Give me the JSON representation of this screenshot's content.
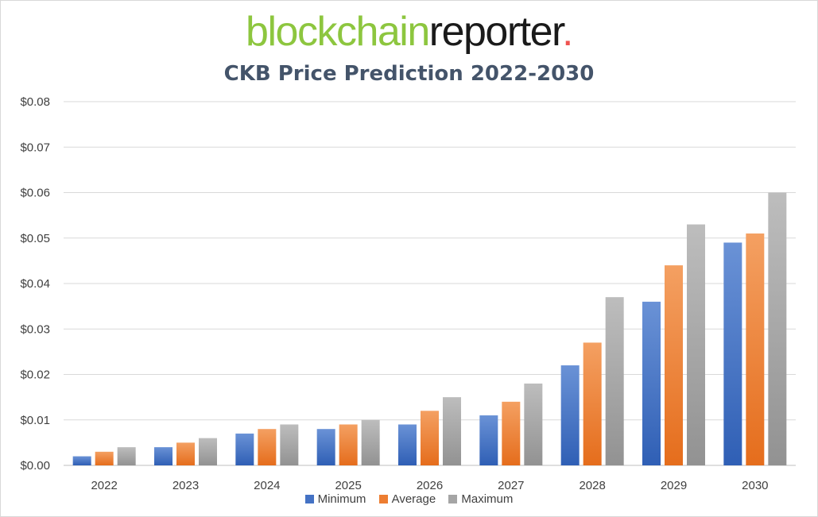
{
  "logo": {
    "part1": "blockchain",
    "part2": "reporter",
    "part3": "."
  },
  "colors": {
    "minimum": "#4472c4",
    "average": "#ed7d31",
    "maximum": "#a5a5a5",
    "logo_green": "#8dc63f",
    "logo_dot": "#ef5350"
  },
  "chart_data": {
    "type": "bar",
    "title": "CKB Price Prediction 2022-2030",
    "xlabel": "",
    "ylabel": "",
    "categories": [
      "2022",
      "2023",
      "2024",
      "2025",
      "2026",
      "2027",
      "2028",
      "2029",
      "2030"
    ],
    "series": [
      {
        "name": "Minimum",
        "values": [
          0.002,
          0.004,
          0.007,
          0.008,
          0.009,
          0.011,
          0.022,
          0.036,
          0.049
        ]
      },
      {
        "name": "Average",
        "values": [
          0.003,
          0.005,
          0.008,
          0.009,
          0.012,
          0.014,
          0.027,
          0.044,
          0.051
        ]
      },
      {
        "name": "Maximum",
        "values": [
          0.004,
          0.006,
          0.009,
          0.01,
          0.015,
          0.018,
          0.037,
          0.053,
          0.06
        ]
      }
    ],
    "ylim": [
      0,
      0.08
    ],
    "yticks": [
      "$0.00",
      "$0.01",
      "$0.02",
      "$0.03",
      "$0.04",
      "$0.05",
      "$0.06",
      "$0.07",
      "$0.08"
    ],
    "grid": true,
    "legend": "bottom"
  }
}
